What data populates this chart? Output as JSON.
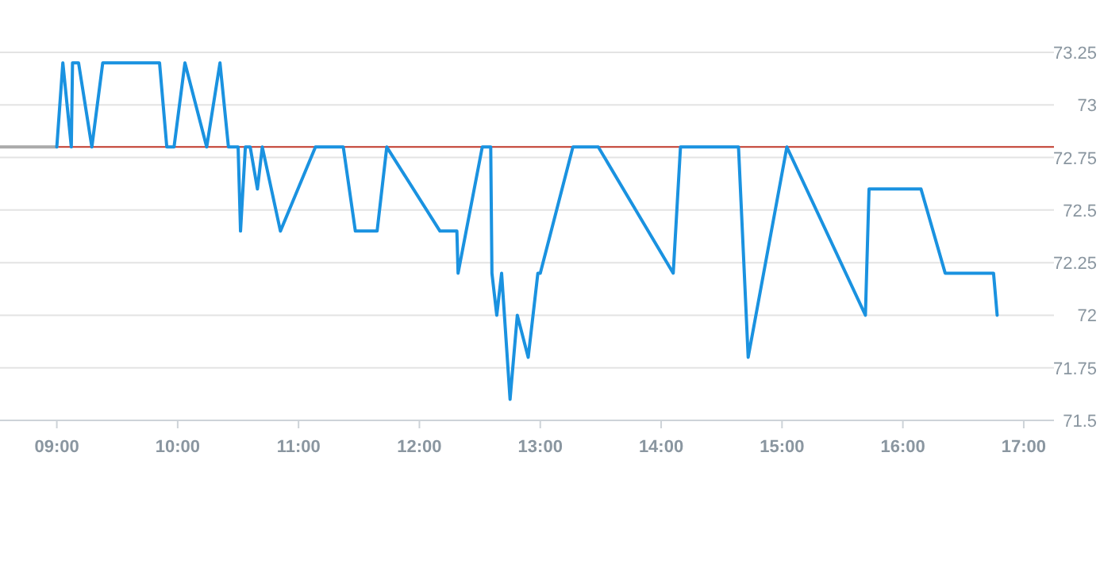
{
  "chart_data": {
    "type": "line",
    "xlim": [
      8.53,
      17.25
    ],
    "ylim": [
      71.5,
      73.25
    ],
    "xticks": [
      {
        "value": 9,
        "label": "09:00"
      },
      {
        "value": 10,
        "label": "10:00"
      },
      {
        "value": 11,
        "label": "11:00"
      },
      {
        "value": 12,
        "label": "12:00"
      },
      {
        "value": 13,
        "label": "13:00"
      },
      {
        "value": 14,
        "label": "14:00"
      },
      {
        "value": 15,
        "label": "15:00"
      },
      {
        "value": 16,
        "label": "16:00"
      },
      {
        "value": 17,
        "label": "17:00"
      }
    ],
    "yticks": [
      71.5,
      71.75,
      72,
      72.25,
      72.5,
      72.75,
      73,
      73.25
    ],
    "grid": "y",
    "marker": "none",
    "line_style": "solid",
    "series": [
      {
        "color": "#aaaaaa",
        "x": [
          8.53,
          9.0
        ],
        "values": [
          72.8,
          72.8
        ]
      },
      {
        "color": "#1a92e0",
        "x": [
          9.0,
          9.05,
          9.12,
          9.13,
          9.18,
          9.29,
          9.38,
          9.85,
          9.91,
          9.97,
          10.06,
          10.24,
          10.35,
          10.42,
          10.5,
          10.52,
          10.56,
          10.6,
          10.66,
          10.7,
          10.85,
          11.14,
          11.37,
          11.47,
          11.65,
          11.73,
          12.17,
          12.31,
          12.32,
          12.52,
          12.59,
          12.6,
          12.64,
          12.68,
          12.75,
          12.81,
          12.9,
          12.98,
          13.0,
          13.27,
          13.48,
          14.1,
          14.16,
          14.64,
          14.72,
          15.04,
          15.69,
          15.72,
          16.15,
          16.35,
          16.75,
          16.78
        ],
        "values": [
          72.8,
          73.2,
          72.8,
          73.2,
          73.2,
          72.8,
          73.2,
          73.2,
          72.8,
          72.8,
          73.2,
          72.8,
          73.2,
          72.8,
          72.8,
          72.4,
          72.8,
          72.8,
          72.6,
          72.8,
          72.4,
          72.8,
          72.8,
          72.4,
          72.4,
          72.8,
          72.4,
          72.4,
          72.2,
          72.8,
          72.8,
          72.2,
          72.0,
          72.2,
          71.6,
          72.0,
          71.8,
          72.2,
          72.2,
          72.8,
          72.8,
          72.2,
          72.8,
          72.8,
          71.8,
          72.8,
          72.0,
          72.6,
          72.6,
          72.2,
          72.2,
          72.0
        ]
      }
    ],
    "ref_lines": [
      {
        "axis": "y",
        "value": 72.8,
        "color": "#c0392b",
        "line_style": "solid"
      }
    ]
  }
}
